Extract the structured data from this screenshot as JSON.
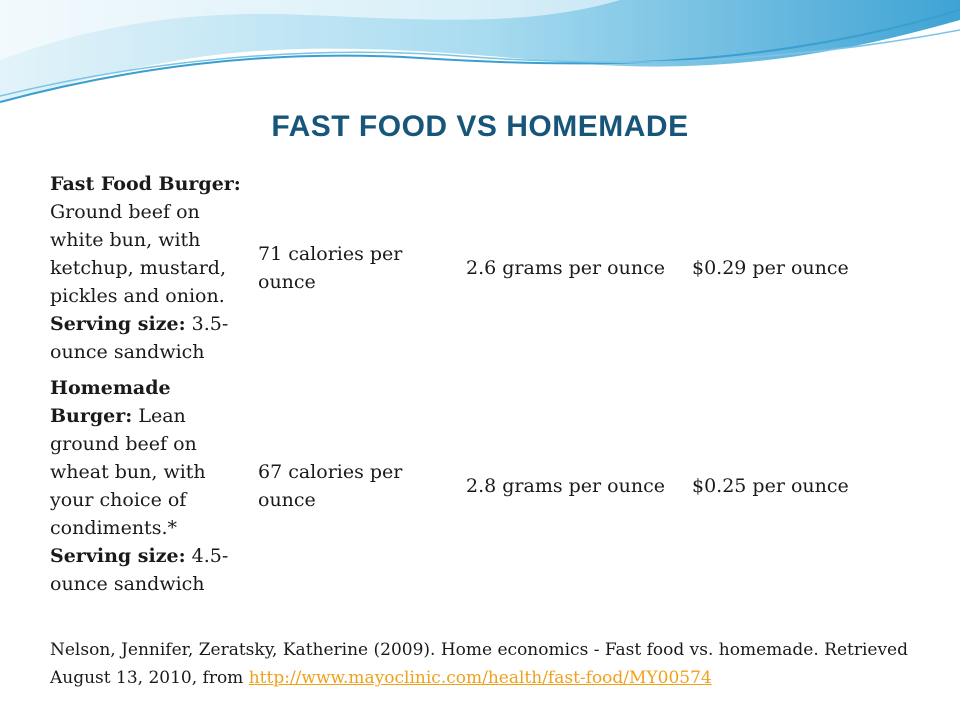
{
  "slide": {
    "title": "FAST FOOD VS HOMEMADE",
    "rows": [
      {
        "label": "Fast Food Burger:",
        "description": "Ground beef on white bun, with ketchup, mustard, pickles and onion.",
        "serving_label": "Serving size:",
        "serving": "3.5-ounce sandwich",
        "calories": "71 calories per ounce",
        "protein": "2.6 grams per ounce",
        "cost": "$0.29 per ounce"
      },
      {
        "label": "Homemade Burger:",
        "description": "Lean ground beef on wheat bun, with your choice of condiments.*",
        "serving_label": "Serving size:",
        "serving": "4.5-ounce sandwich",
        "calories": "67 calories per ounce",
        "protein": "2.8 grams per ounce",
        "cost": "$0.25 per ounce"
      }
    ],
    "citation": {
      "text": "Nelson, Jennifer, Zeratsky, Katherine (2009). Home economics - Fast food vs. homemade. Retrieved August 13, 2010, from",
      "link": "http://www.mayoclinic.com/health/fast-food/MY00574"
    },
    "colors": {
      "title": "#17557a",
      "link": "#f0a11a",
      "wave_light": "#cfe9f5",
      "wave_mid": "#7cc4e6",
      "wave_dark": "#3a9fd0"
    }
  }
}
